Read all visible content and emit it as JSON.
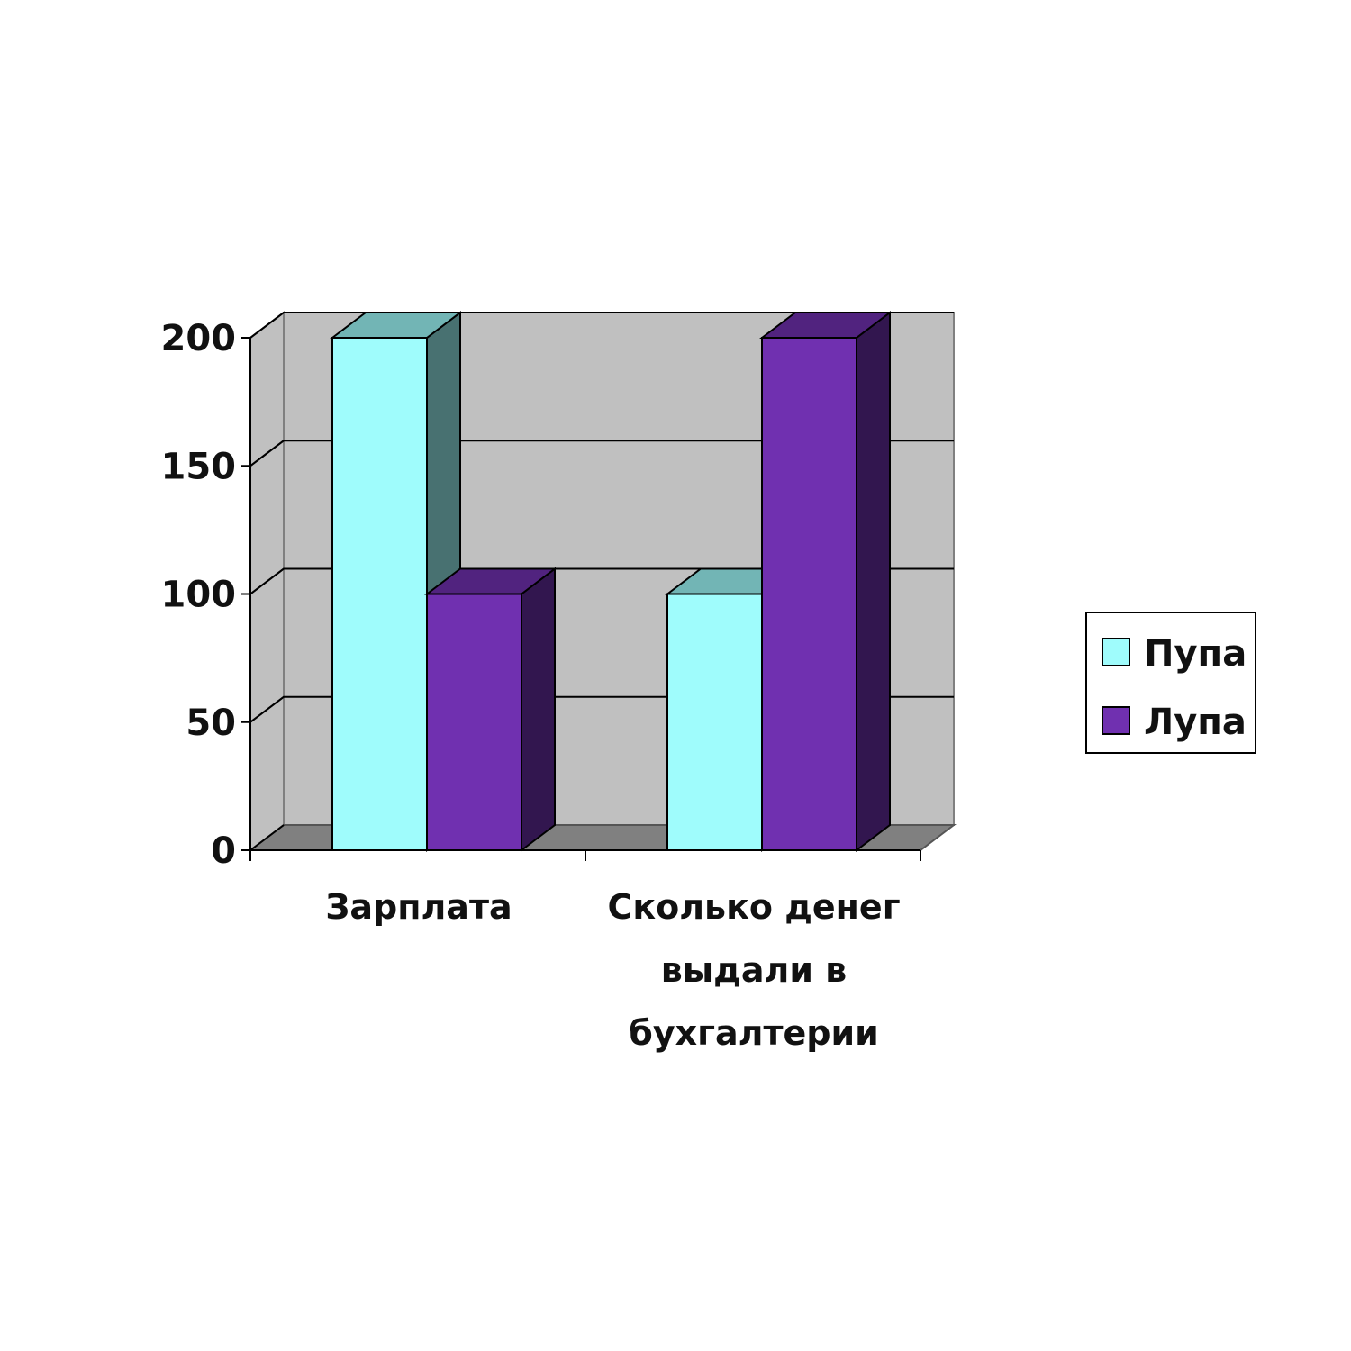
{
  "chart_data": {
    "type": "bar",
    "style": "3d-clustered-column",
    "categories": [
      [
        "Зарплата"
      ],
      [
        "Сколько денег",
        "выдали в",
        "бухгалтерии"
      ]
    ],
    "series": [
      {
        "name": "Пупа",
        "values": [
          200,
          100
        ],
        "color": "#9ffcfc"
      },
      {
        "name": "Лупа",
        "values": [
          100,
          200
        ],
        "color": "#7030b0"
      }
    ],
    "ylim": [
      0,
      200
    ],
    "yticks": [
      0,
      50,
      100,
      150,
      200
    ],
    "grid": true,
    "legend_position": "right",
    "colors": {
      "wall": "#c0c0c0",
      "floor": "#808080",
      "gridline": "#000000"
    }
  }
}
